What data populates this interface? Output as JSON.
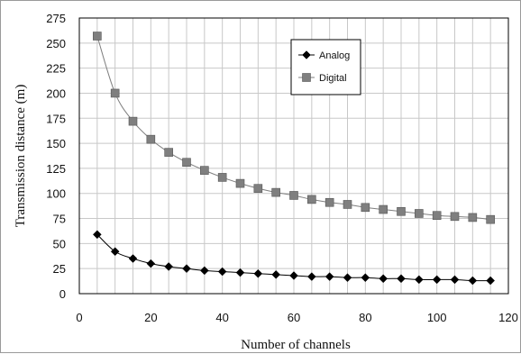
{
  "chart_data": {
    "type": "line",
    "title": "",
    "xlabel": "Number of channels",
    "ylabel": "Transmission distance (m)",
    "xlim": [
      0,
      120
    ],
    "ylim": [
      0,
      275
    ],
    "xticks": [
      0,
      20,
      40,
      60,
      80,
      100,
      120
    ],
    "yticks": [
      0,
      25,
      50,
      75,
      100,
      125,
      150,
      175,
      200,
      225,
      250,
      275
    ],
    "grid": true,
    "legend_position": "top-right",
    "x": [
      5,
      10,
      15,
      20,
      25,
      30,
      35,
      40,
      45,
      50,
      55,
      60,
      65,
      70,
      75,
      80,
      85,
      90,
      95,
      100,
      105,
      110,
      115
    ],
    "series": [
      {
        "name": "Analog",
        "marker": "diamond",
        "color": "#000000",
        "values": [
          59,
          42,
          35,
          30,
          27,
          25,
          23,
          22,
          21,
          20,
          19,
          18,
          17,
          17,
          16,
          16,
          15,
          15,
          14,
          14,
          14,
          13,
          13
        ]
      },
      {
        "name": "Digital",
        "marker": "square",
        "color": "#7f7f7f",
        "values": [
          257,
          200,
          172,
          154,
          141,
          131,
          123,
          116,
          110,
          105,
          101,
          98,
          94,
          91,
          89,
          86,
          84,
          82,
          80,
          78,
          77,
          76,
          74
        ]
      }
    ]
  }
}
